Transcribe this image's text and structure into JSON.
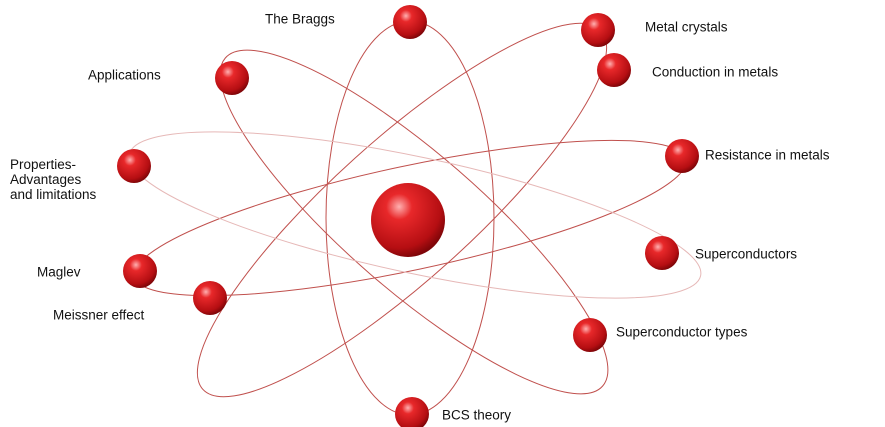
{
  "nodes": [
    {
      "label": "The Braggs"
    },
    {
      "label": "Metal crystals"
    },
    {
      "label": "Conduction in metals"
    },
    {
      "label": "Applications"
    },
    {
      "lines": [
        "Properties-",
        "Advantages",
        "and limitations"
      ]
    },
    {
      "label": "Resistance in metals"
    },
    {
      "label": "Superconductors"
    },
    {
      "label": "Maglev"
    },
    {
      "label": "Meissner effect"
    },
    {
      "label": "Superconductor types"
    },
    {
      "label": "BCS theory"
    }
  ]
}
